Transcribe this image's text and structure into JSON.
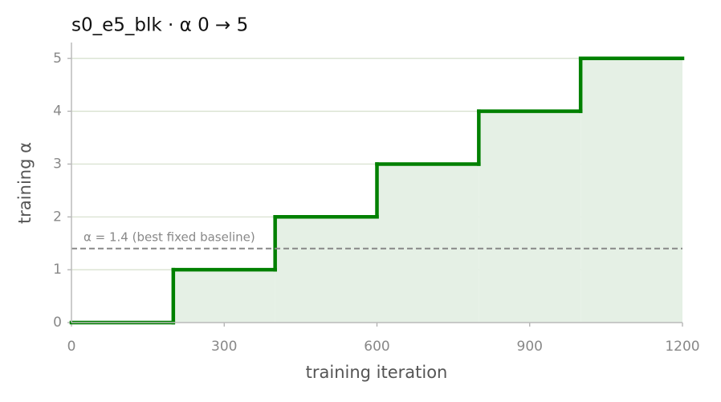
{
  "chart_data": {
    "type": "step",
    "title": "s0_e5_blk   ·   α 0 → 5",
    "x_label": "training iteration",
    "y_label": "training α",
    "x": [
      0,
      200,
      400,
      600,
      800,
      1000
    ],
    "values": [
      0,
      1,
      2,
      3,
      4,
      5
    ],
    "color": "#008000",
    "fill_color": "#e5f0e5",
    "xlim": [
      0,
      1200
    ],
    "xticks": [
      0,
      300,
      600,
      900,
      1200
    ],
    "ylim": [
      0,
      5.3
    ],
    "yticks": [
      0,
      1,
      2,
      3,
      4,
      5
    ],
    "grid": true,
    "reference": {
      "value": 1.4,
      "label": "α = 1.4 (best fixed baseline)",
      "color": "#888888"
    }
  }
}
